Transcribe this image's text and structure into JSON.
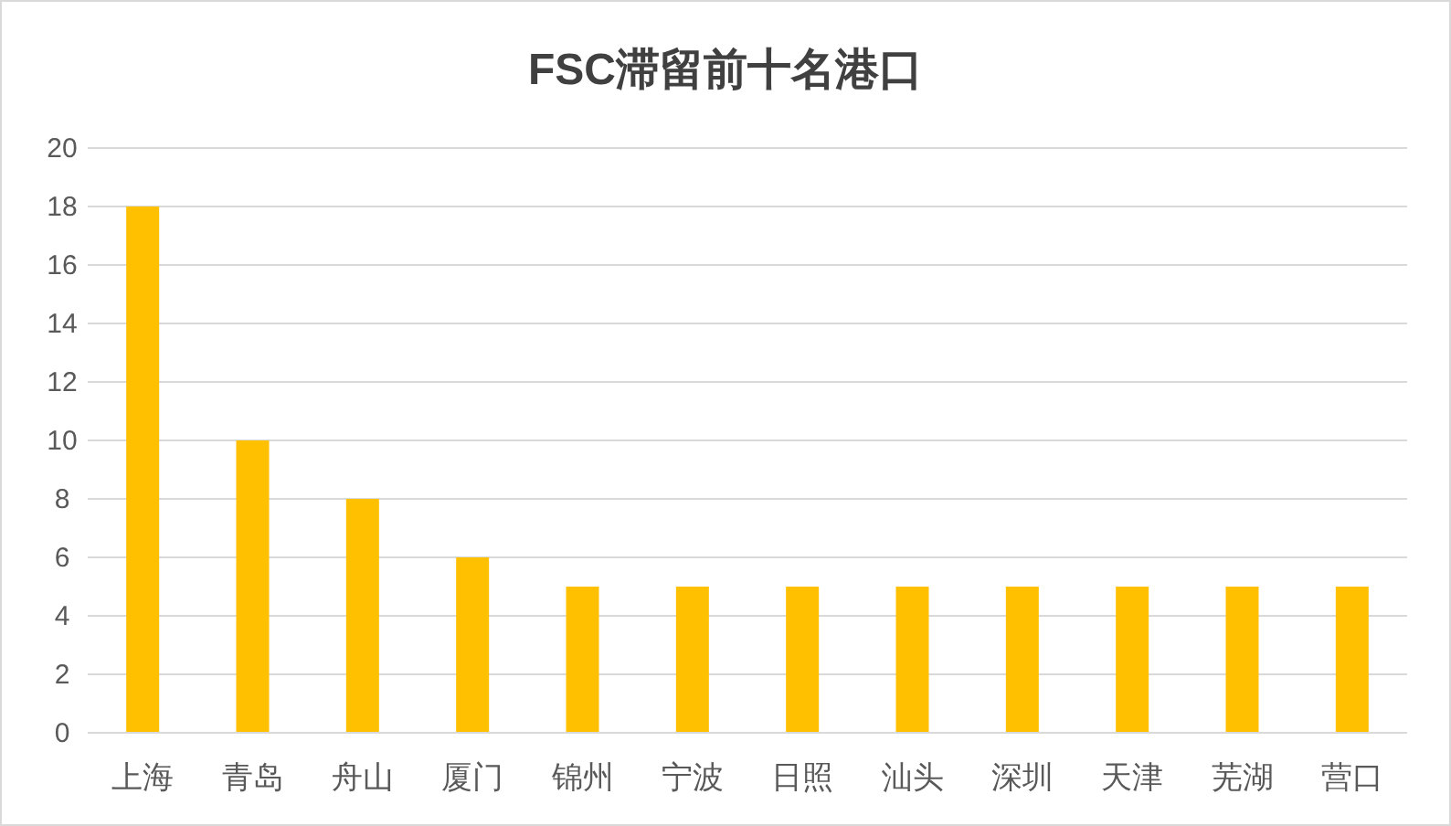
{
  "chart_data": {
    "type": "bar",
    "title": "FSC滞留前十名港口",
    "categories": [
      "上海",
      "青岛",
      "舟山",
      "厦门",
      "锦州",
      "宁波",
      "日照",
      "汕头",
      "深圳",
      "天津",
      "芜湖",
      "营口"
    ],
    "values": [
      18,
      10,
      8,
      6,
      5,
      5,
      5,
      5,
      5,
      5,
      5,
      5
    ],
    "color": "#ffc000",
    "ylim": [
      0,
      20
    ],
    "yticks": [
      0,
      2,
      4,
      6,
      8,
      10,
      12,
      14,
      16,
      18,
      20
    ],
    "grid": "y"
  }
}
